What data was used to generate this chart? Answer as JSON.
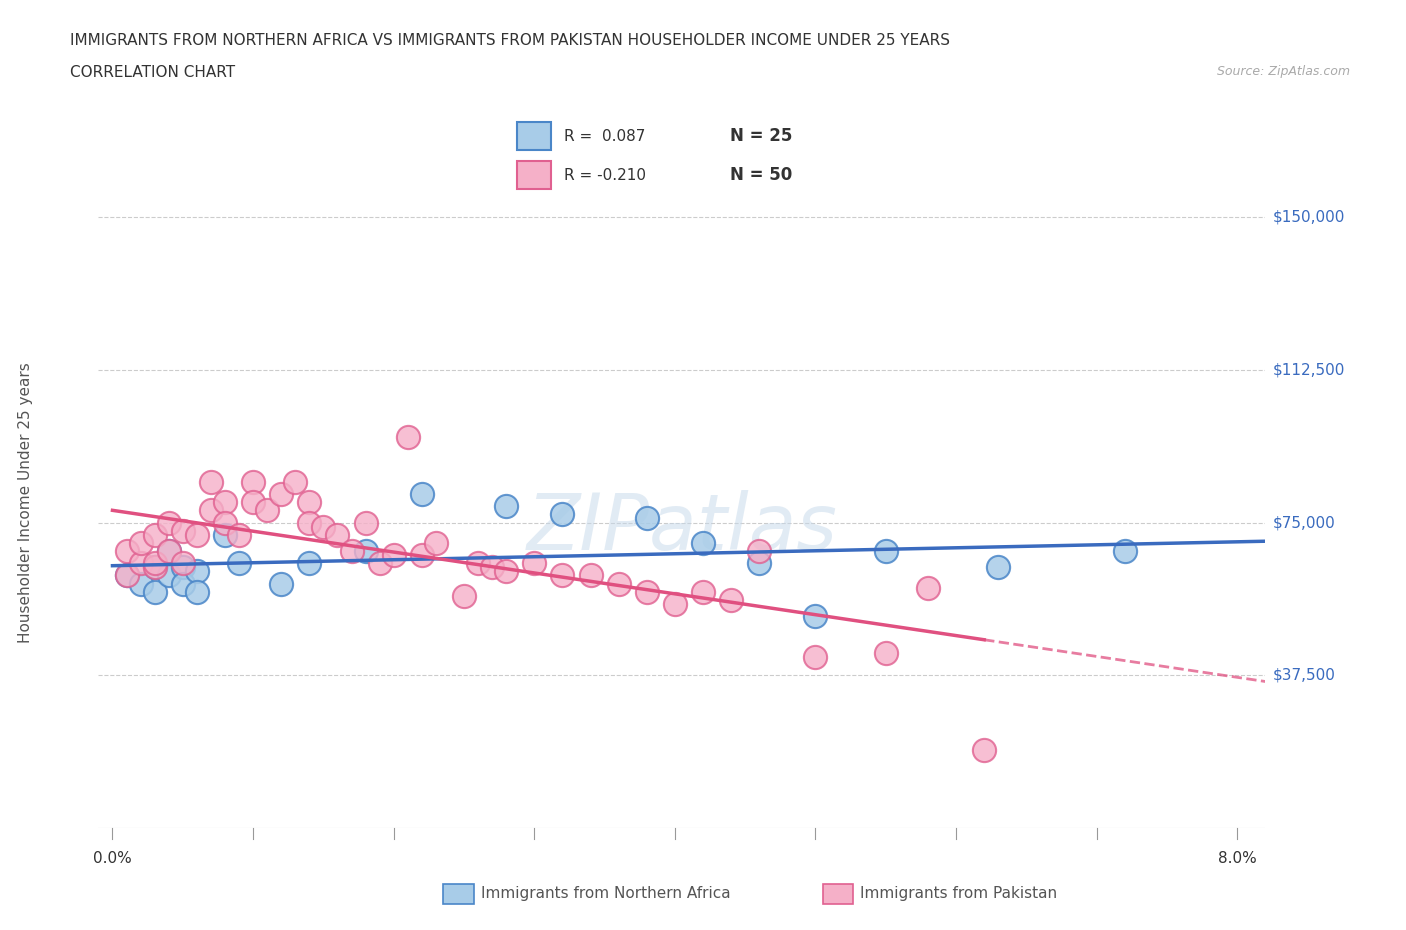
{
  "title_line1": "IMMIGRANTS FROM NORTHERN AFRICA VS IMMIGRANTS FROM PAKISTAN HOUSEHOLDER INCOME UNDER 25 YEARS",
  "title_line2": "CORRELATION CHART",
  "source_text": "Source: ZipAtlas.com",
  "ylabel": "Householder Income Under 25 years",
  "xlim_min": -0.001,
  "xlim_max": 0.082,
  "ylim_min": 0,
  "ylim_max": 160000,
  "grid_color": "#cccccc",
  "watermark": "ZIPatlas",
  "blue_fill": "#a8cce8",
  "pink_fill": "#f5b0c8",
  "blue_edge": "#4a86c8",
  "pink_edge": "#e06090",
  "blue_line_color": "#3a6bbf",
  "pink_line_color": "#e05080",
  "ytick_positions": [
    0,
    37500,
    75000,
    112500,
    150000
  ],
  "ytick_labels": [
    "",
    "$37,500",
    "$75,000",
    "$112,500",
    "$150,000"
  ],
  "xtick_positions": [
    0.0,
    0.01,
    0.02,
    0.03,
    0.04,
    0.05,
    0.06,
    0.07,
    0.08
  ],
  "legend_label_blue": "Immigrants from Northern Africa",
  "legend_label_pink": "Immigrants from Pakistan",
  "legend_R_blue": "R =  0.087",
  "legend_N_blue": "N = 25",
  "legend_R_pink": "R = -0.210",
  "legend_N_pink": "N = 50",
  "blue_x": [
    0.001,
    0.002,
    0.003,
    0.003,
    0.004,
    0.004,
    0.005,
    0.005,
    0.006,
    0.006,
    0.008,
    0.009,
    0.012,
    0.014,
    0.018,
    0.022,
    0.028,
    0.032,
    0.038,
    0.042,
    0.046,
    0.05,
    0.055,
    0.063,
    0.072
  ],
  "blue_y": [
    62000,
    60000,
    64000,
    58000,
    62000,
    68000,
    64000,
    60000,
    63000,
    58000,
    72000,
    65000,
    60000,
    65000,
    68000,
    82000,
    79000,
    77000,
    76000,
    70000,
    65000,
    52000,
    68000,
    64000,
    68000
  ],
  "pink_x": [
    0.001,
    0.001,
    0.002,
    0.002,
    0.003,
    0.003,
    0.003,
    0.004,
    0.004,
    0.005,
    0.005,
    0.006,
    0.007,
    0.007,
    0.008,
    0.008,
    0.009,
    0.01,
    0.01,
    0.011,
    0.012,
    0.013,
    0.014,
    0.014,
    0.015,
    0.016,
    0.017,
    0.018,
    0.019,
    0.02,
    0.021,
    0.022,
    0.023,
    0.025,
    0.026,
    0.027,
    0.028,
    0.03,
    0.032,
    0.034,
    0.036,
    0.038,
    0.04,
    0.042,
    0.044,
    0.046,
    0.05,
    0.055,
    0.058,
    0.062
  ],
  "pink_y": [
    62000,
    68000,
    65000,
    70000,
    64000,
    72000,
    65000,
    75000,
    68000,
    65000,
    73000,
    72000,
    85000,
    78000,
    80000,
    75000,
    72000,
    85000,
    80000,
    78000,
    82000,
    85000,
    80000,
    75000,
    74000,
    72000,
    68000,
    75000,
    65000,
    67000,
    96000,
    67000,
    70000,
    57000,
    65000,
    64000,
    63000,
    65000,
    62000,
    62000,
    60000,
    58000,
    55000,
    58000,
    56000,
    68000,
    42000,
    43000,
    59000,
    19000
  ]
}
